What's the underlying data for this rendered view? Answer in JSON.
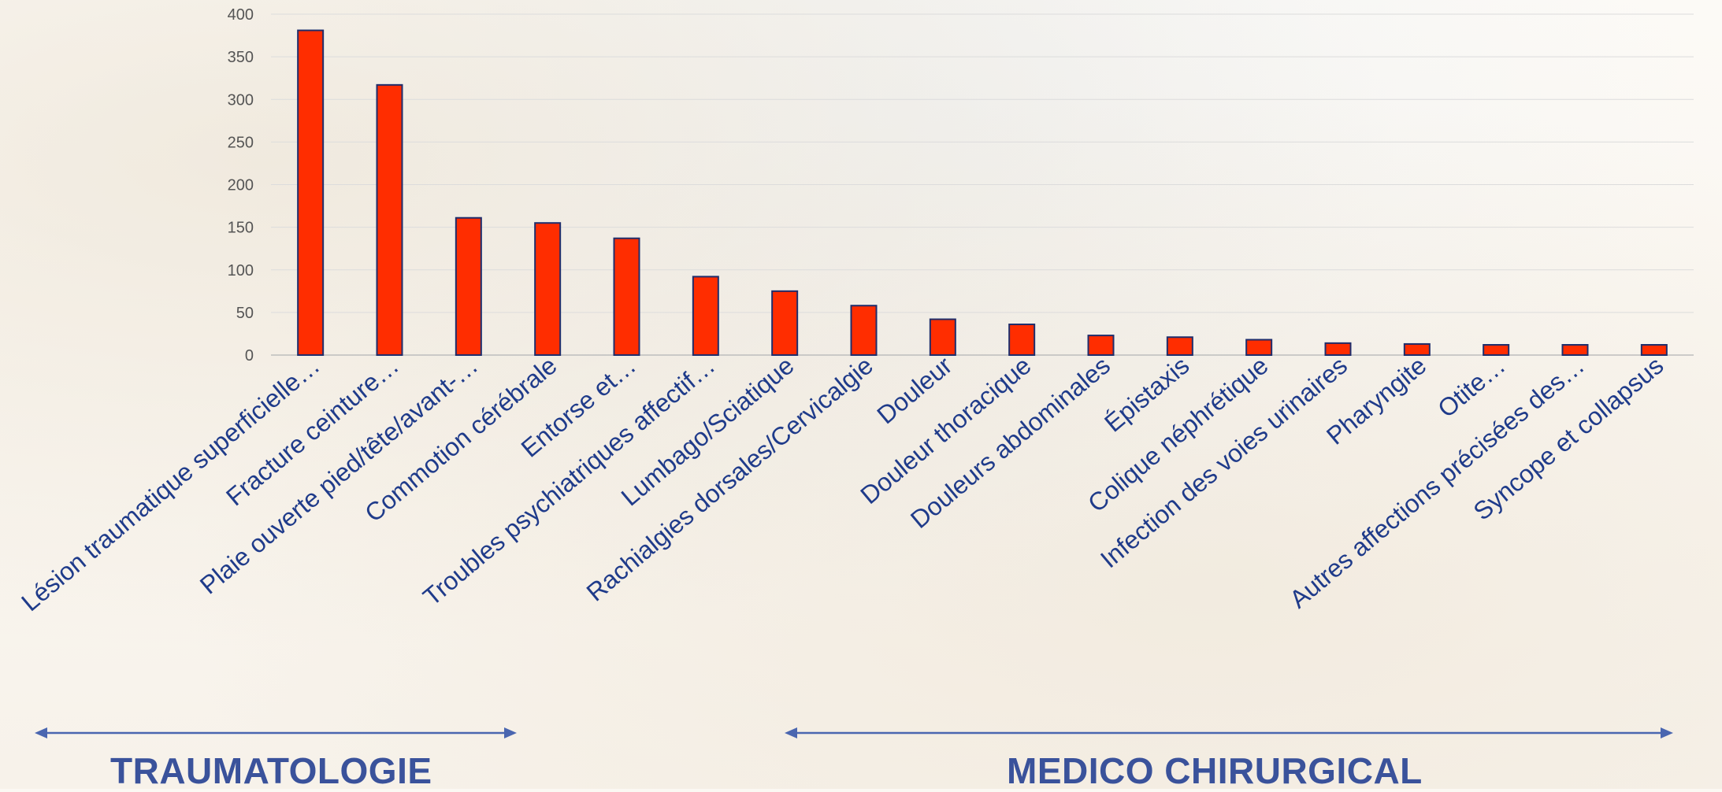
{
  "chart_data": {
    "type": "bar",
    "categories": [
      "Lésion traumatique superficielle…",
      "Fracture ceinture…",
      "Plaie ouverte pied/tête/avant-…",
      "Commotion cérébrale",
      "Entorse et…",
      "Troubles psychiatriques affectif…",
      "Lumbago/Sciatique",
      "Rachialgies dorsales/Cervicalgie",
      "Douleur",
      "Douleur thoracique",
      "Douleurs abdominales",
      "Épistaxis",
      "Colique néphrétique",
      "Infection des voies urinaires",
      "Pharyngite",
      "Otite…",
      "Autres affections précisées des…",
      "Syncope et collapsus"
    ],
    "values": [
      381,
      317,
      161,
      155,
      137,
      92,
      75,
      58,
      42,
      36,
      23,
      21,
      18,
      14,
      13,
      12,
      12,
      12
    ],
    "ylim": [
      0,
      400
    ],
    "yticks": [
      0,
      50,
      100,
      150,
      200,
      250,
      300,
      350,
      400
    ],
    "grid": true,
    "bar_color": "#ff2d00",
    "bar_edge_color": "#1f2d6b",
    "label_color": "#1f3b8a",
    "axis_text_color": "#555555"
  },
  "groups": {
    "trauma_label": "TRAUMATOLOGIE",
    "medico_label": "MEDICO CHIRURGICAL",
    "arrow_color": "#4a66b0",
    "text_color": "#3a529b"
  }
}
